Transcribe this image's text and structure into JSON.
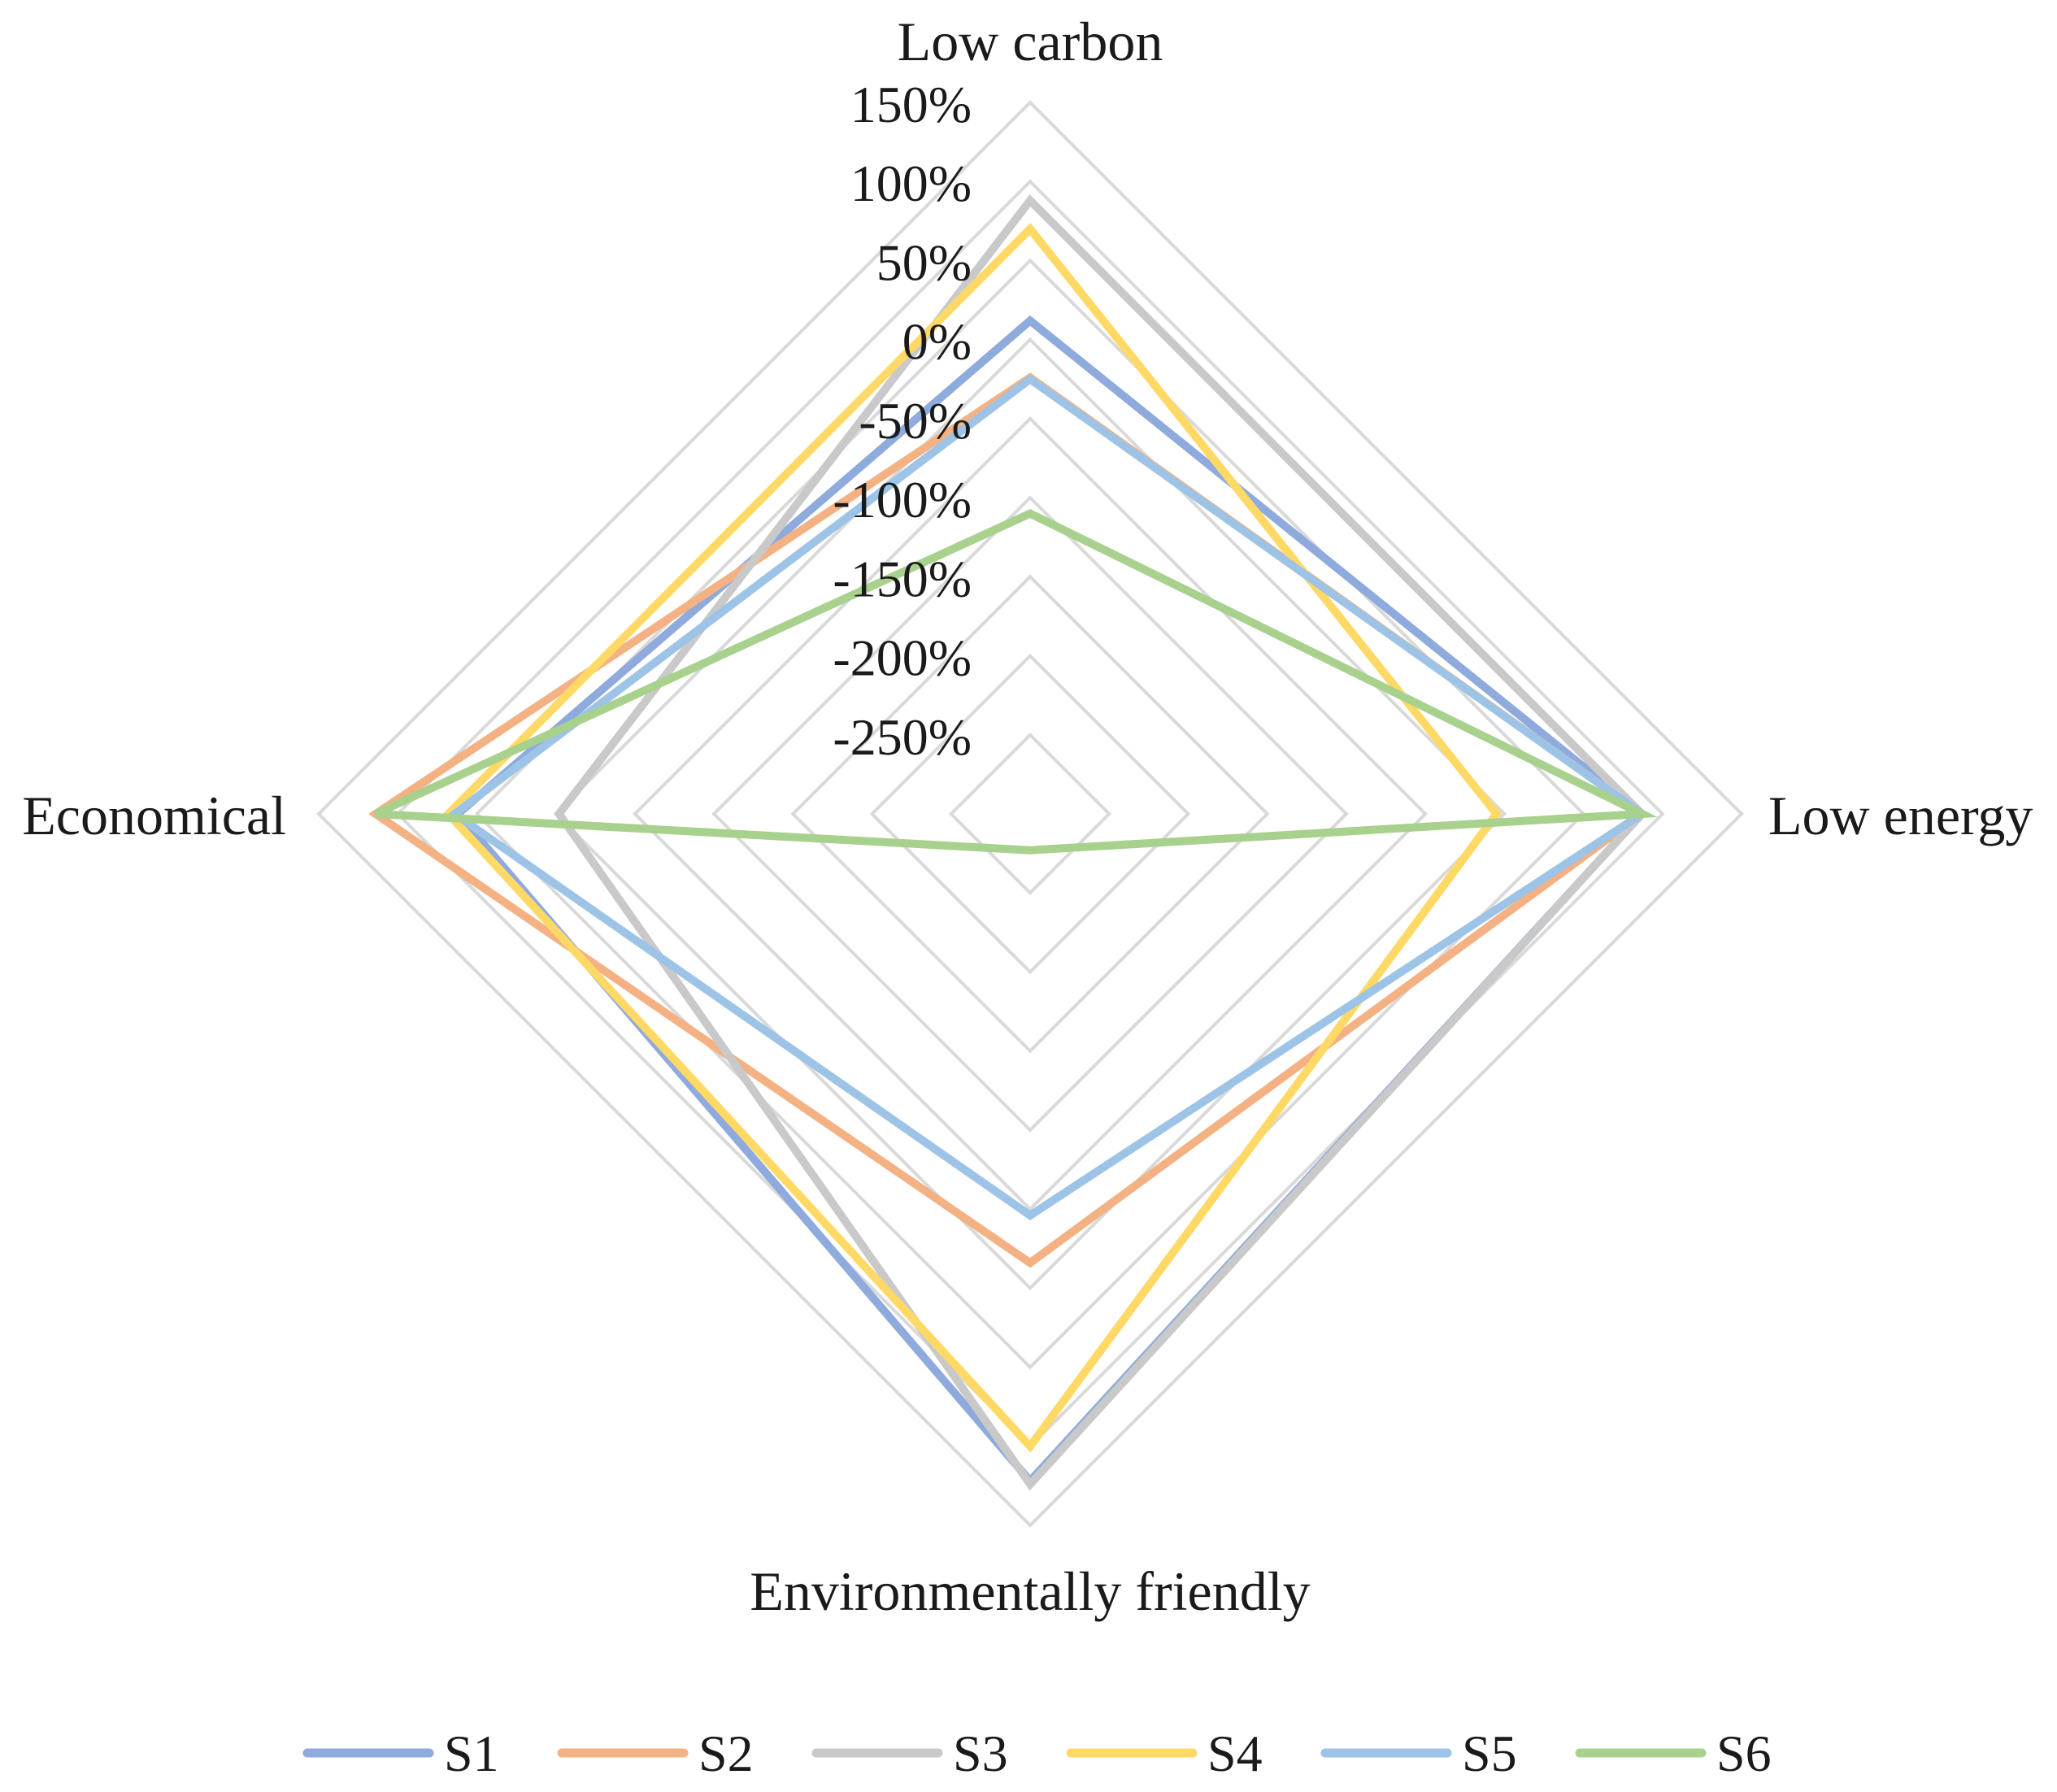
{
  "chart_data": {
    "type": "radar",
    "axes": [
      "Low carbon",
      "Low energy",
      "Environmentally friendly",
      "Economical"
    ],
    "tick_labels": [
      "150%",
      "100%",
      "50%",
      "0%",
      "-50%",
      "-100%",
      "-150%",
      "-200%",
      "-250%"
    ],
    "ticks": [
      150,
      100,
      50,
      0,
      -50,
      -100,
      -150,
      -200,
      -250
    ],
    "range": [
      -300,
      150
    ],
    "grid": true,
    "legend": {
      "position": "bottom"
    },
    "series": [
      {
        "name": "S1",
        "color": "#8faadc",
        "values": [
          12,
          87,
          122,
          62
        ]
      },
      {
        "name": "S2",
        "color": "#f4b183",
        "values": [
          -24,
          87,
          -16,
          114
        ]
      },
      {
        "name": "S3",
        "color": "#c9c9c9",
        "values": [
          88,
          87,
          124,
          -2
        ]
      },
      {
        "name": "S4",
        "color": "#ffd966",
        "values": [
          70,
          -5,
          100,
          68
        ]
      },
      {
        "name": "S5",
        "color": "#9dc3e6",
        "values": [
          -25,
          87,
          -46,
          64
        ]
      },
      {
        "name": "S6",
        "color": "#a9d18e",
        "values": [
          -110,
          87,
          -277,
          114
        ]
      }
    ]
  }
}
